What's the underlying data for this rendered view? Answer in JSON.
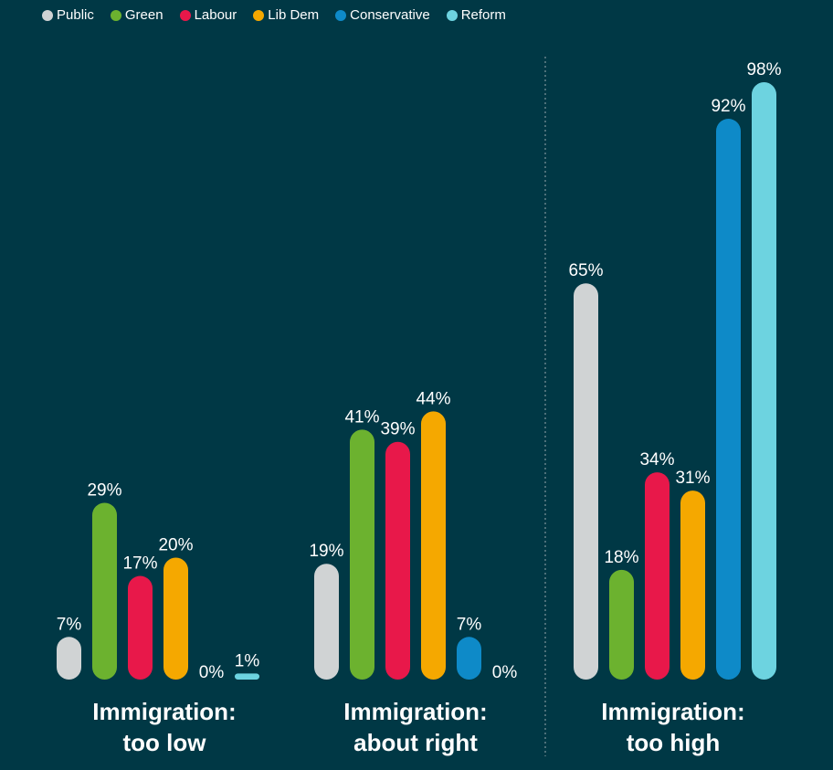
{
  "chart_data": {
    "type": "bar",
    "categories": [
      "Immigration: too low",
      "Immigration: about right",
      "Immigration: too high"
    ],
    "category_lines": [
      [
        "Immigration:",
        "too low"
      ],
      [
        "Immigration:",
        "about right"
      ],
      [
        "Immigration:",
        "too high"
      ]
    ],
    "series": [
      {
        "name": "Public",
        "color": "#d0d3d4",
        "values": [
          7,
          19,
          65
        ]
      },
      {
        "name": "Green",
        "color": "#6cb22f",
        "values": [
          29,
          41,
          18
        ]
      },
      {
        "name": "Labour",
        "color": "#e8184a",
        "values": [
          17,
          39,
          34
        ]
      },
      {
        "name": "Lib Dem",
        "color": "#f5a800",
        "values": [
          20,
          44,
          31
        ]
      },
      {
        "name": "Conservative",
        "color": "#0e8ac8",
        "values": [
          0,
          7,
          92
        ]
      },
      {
        "name": "Reform",
        "color": "#6dd3e0",
        "values": [
          1,
          0,
          98
        ]
      }
    ],
    "value_suffix": "%",
    "ylim": [
      0,
      100
    ],
    "legend_position": "top-left",
    "title": "",
    "xlabel": "",
    "ylabel": ""
  }
}
